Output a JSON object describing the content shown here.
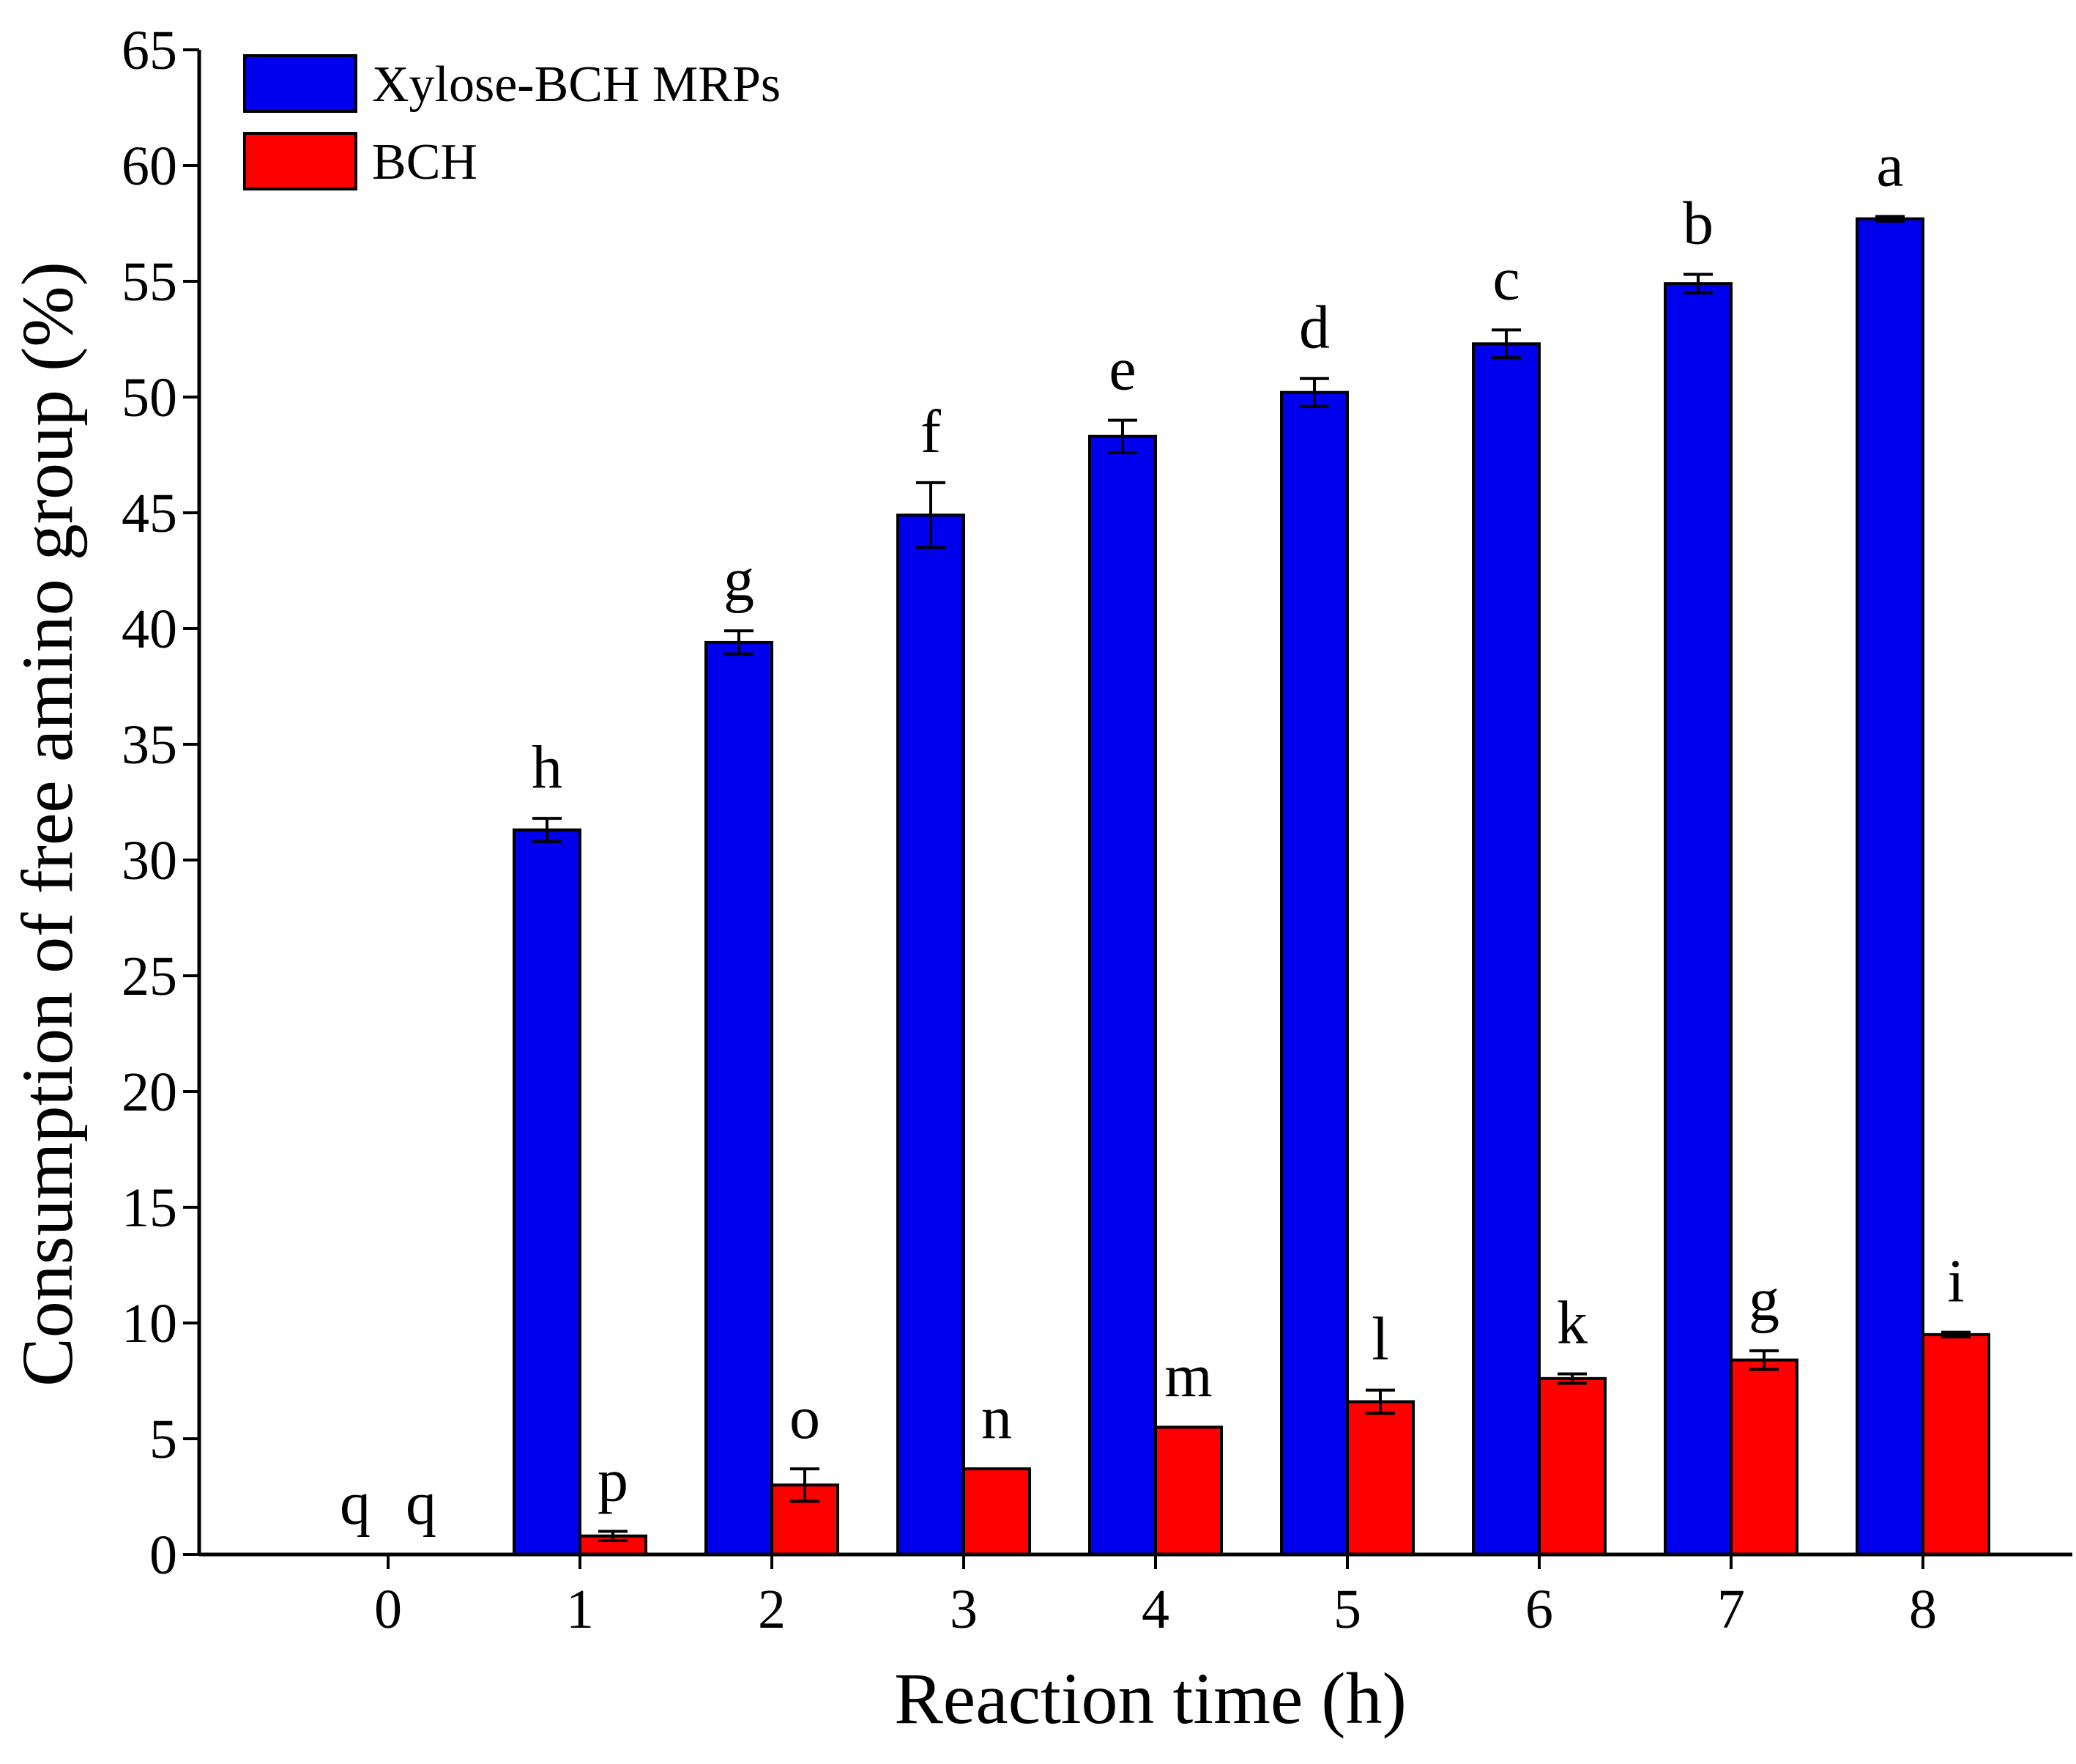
{
  "chart_data": {
    "type": "bar",
    "title": "",
    "xlabel": "Reaction time (h)",
    "ylabel": "Consumption of free amino group (%)",
    "ylim": [
      0,
      65
    ],
    "yticks": [
      0,
      5,
      10,
      15,
      20,
      25,
      30,
      35,
      40,
      45,
      50,
      55,
      60,
      65
    ],
    "categories": [
      "0",
      "1",
      "2",
      "3",
      "4",
      "5",
      "6",
      "7",
      "8"
    ],
    "legend_position": "top-left",
    "series": [
      {
        "name": "Xylose-BCH MRPs",
        "color": "#0000ee",
        "values": [
          0,
          31.3,
          39.4,
          44.9,
          48.3,
          50.2,
          52.3,
          54.9,
          57.7
        ],
        "errors": [
          0,
          0.5,
          0.5,
          1.4,
          0.7,
          0.6,
          0.6,
          0.4,
          0.1
        ],
        "letters": [
          "q",
          "h",
          "g",
          "f",
          "e",
          "d",
          "c",
          "b",
          "a"
        ]
      },
      {
        "name": "BCH",
        "color": "#ff0000",
        "values": [
          0,
          0.8,
          3.0,
          3.7,
          5.5,
          6.6,
          7.6,
          8.4,
          9.5
        ],
        "errors": [
          0,
          0.2,
          0.7,
          0,
          0,
          0.5,
          0.2,
          0.4,
          0.1
        ],
        "letters": [
          "q",
          "p",
          "o",
          "n",
          "m",
          "l",
          "k",
          "g",
          "i"
        ]
      }
    ]
  }
}
